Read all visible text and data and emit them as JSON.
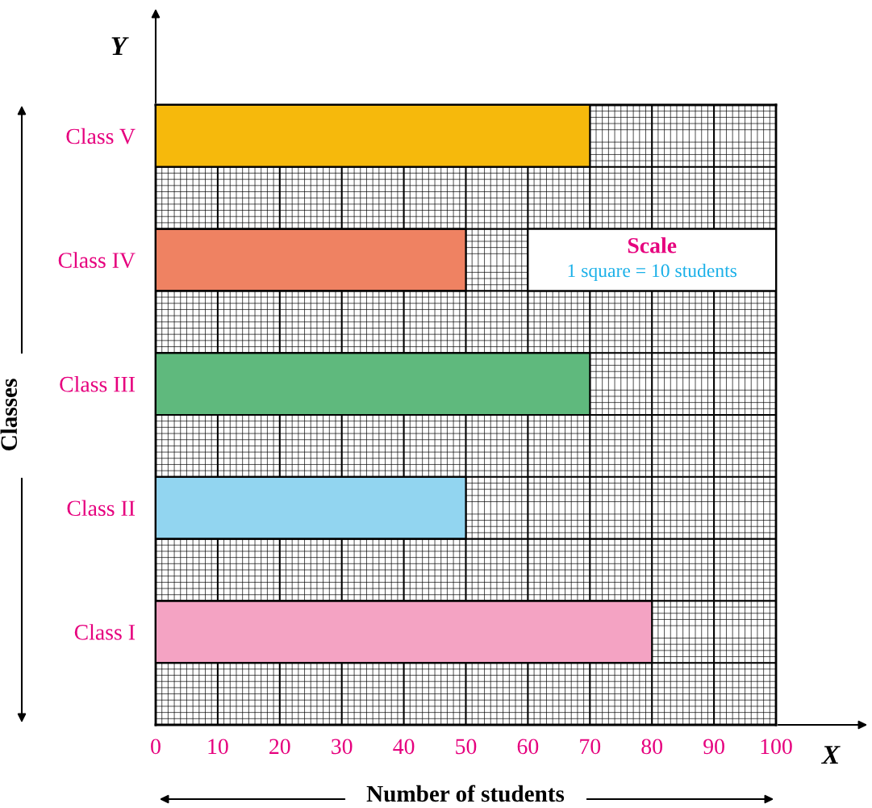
{
  "chart_data": {
    "type": "bar",
    "orientation": "horizontal",
    "xlabel": "Number of students",
    "ylabel": "Classes",
    "categories": [
      "Class V",
      "Class IV",
      "Class III",
      "Class II",
      "Class I"
    ],
    "values": [
      70,
      50,
      70,
      50,
      80
    ],
    "colors": [
      "#f6b90c",
      "#ef8262",
      "#5fb97d",
      "#92d5f0",
      "#f4a3c3"
    ],
    "xlim": [
      0,
      100
    ],
    "xticks": [
      0,
      10,
      20,
      30,
      40,
      50,
      60,
      70,
      80,
      90,
      100
    ],
    "grid": true,
    "annotations": [
      "Scale",
      "1 square = 10 students",
      "X",
      "Y"
    ]
  }
}
